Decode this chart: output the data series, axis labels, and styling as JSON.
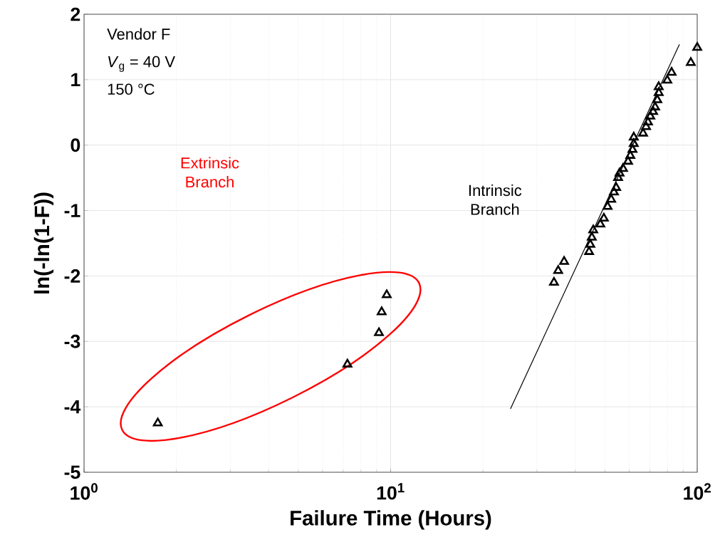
{
  "chart_data": {
    "type": "scatter",
    "xlabel": "Failure Time (Hours)",
    "ylabel": "ln(-ln(1-F))",
    "annotations": [
      "Vendor F",
      "*V*$_{g}$ = 40 V",
      "150 °C",
      "Extrinsic Branch",
      "Intrinsic Branch"
    ],
    "log": "x",
    "grid": true,
    "xlim": [
      1,
      100
    ],
    "ylim": [
      -5,
      2
    ],
    "xticks": [
      {
        "value": 1,
        "label": "10$^{0}$"
      },
      {
        "value": 10,
        "label": "10$^{1}$"
      },
      {
        "value": 100,
        "label": "10$^{2}$"
      }
    ],
    "yticks": [
      -5,
      -4,
      -3,
      -2,
      -1,
      0,
      1,
      2
    ],
    "series": [
      {
        "color": "#000000",
        "marker": "triangle",
        "x": [
          1.74,
          7.23,
          9.16,
          9.35,
          9.71,
          34.1,
          35.2,
          36.8,
          44.4,
          44.8,
          45.3,
          45.8,
          48.3,
          49.6,
          51.0,
          52.4,
          53.5,
          54.4,
          55.2,
          55.8,
          57.3,
          59.5,
          60.5,
          61.5,
          62.1,
          62.1,
          66.6,
          68.1,
          69.1,
          70.3,
          71.8,
          72.9,
          74.1,
          74.9,
          74.9,
          79.9,
          82.5,
          95.3,
          100
        ],
        "values": [
          -4.25,
          -3.35,
          -2.87,
          -2.55,
          -2.29,
          -2.1,
          -1.92,
          -1.78,
          -1.63,
          -1.52,
          -1.41,
          -1.3,
          -1.21,
          -1.12,
          -0.94,
          -0.83,
          -0.72,
          -0.65,
          -0.5,
          -0.43,
          -0.36,
          -0.25,
          -0.16,
          -0.07,
          0.02,
          0.12,
          0.18,
          0.28,
          0.35,
          0.44,
          0.51,
          0.58,
          0.69,
          0.8,
          0.89,
          0.99,
          1.11,
          1.26,
          1.49
        ]
      },
      {
        "type": "line",
        "color": "#000000",
        "marker": "none",
        "x": [
          24.6,
          87.5
        ],
        "values": [
          -4.03,
          1.54
        ]
      }
    ]
  }
}
